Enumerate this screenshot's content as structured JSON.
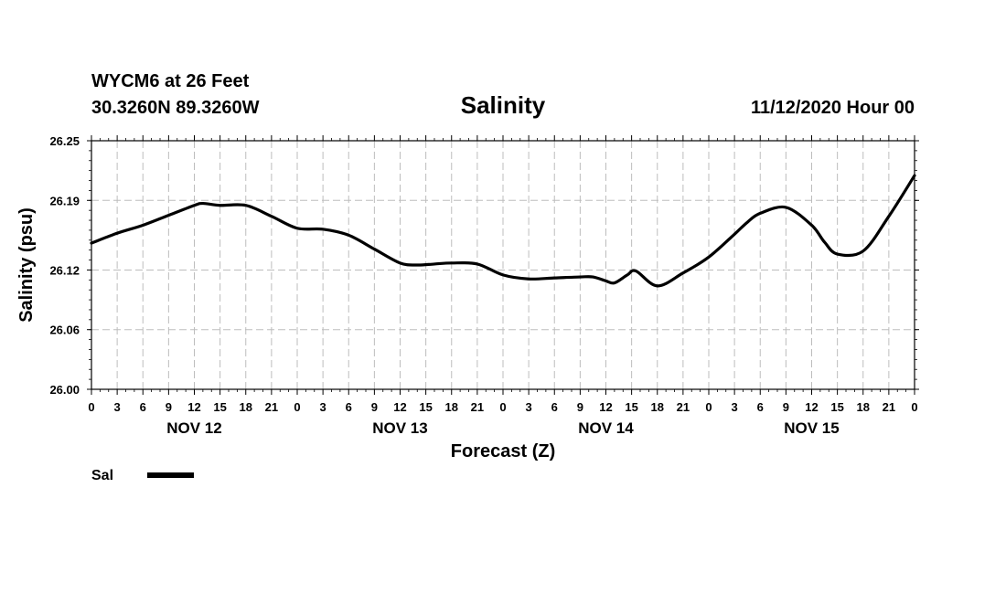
{
  "chart_data": {
    "type": "line",
    "title": "Salinity",
    "station_line1": "WYCM6 at 26 Feet",
    "station_line2": "30.3260N 89.3260W",
    "run_time": "11/12/2020 Hour 00",
    "xlabel": "Forecast (Z)",
    "ylabel": "Salinity (psu)",
    "ylim": [
      26.0,
      26.25
    ],
    "yticks": [
      26.0,
      26.06,
      26.12,
      26.19,
      26.25
    ],
    "ytick_labels": [
      "26.00",
      "26.06",
      "26.12",
      "26.19",
      "26.25"
    ],
    "xlim_hours": [
      0,
      96
    ],
    "xtick_labels": [
      "0",
      "3",
      "6",
      "9",
      "12",
      "15",
      "18",
      "21",
      "0",
      "3",
      "6",
      "9",
      "12",
      "15",
      "18",
      "21",
      "0",
      "3",
      "6",
      "9",
      "12",
      "15",
      "18",
      "21",
      "0",
      "3",
      "6",
      "9",
      "12",
      "15",
      "18",
      "21",
      "0"
    ],
    "day_labels": [
      {
        "label": "NOV 12",
        "hour": 12
      },
      {
        "label": "NOV 13",
        "hour": 36
      },
      {
        "label": "NOV 14",
        "hour": 60
      },
      {
        "label": "NOV 15",
        "hour": 84
      }
    ],
    "grid": true,
    "legend_position": "bottom-left",
    "series": [
      {
        "name": "Sal",
        "x": [
          0,
          3,
          6,
          9,
          12,
          13,
          15,
          18,
          21,
          24,
          27,
          30,
          33,
          36,
          38,
          40,
          42,
          45,
          48,
          51,
          54,
          57,
          58.5,
          60,
          61,
          62.5,
          63.5,
          66,
          69,
          72,
          75,
          76.5,
          78,
          81,
          84,
          85.5,
          87,
          90,
          93,
          96
        ],
        "values": [
          26.147,
          26.157,
          26.165,
          26.175,
          26.185,
          26.187,
          26.185,
          26.185,
          26.174,
          26.162,
          26.161,
          26.155,
          26.141,
          26.127,
          26.125,
          26.126,
          26.127,
          26.126,
          26.115,
          26.111,
          26.112,
          26.113,
          26.113,
          26.109,
          26.107,
          26.115,
          26.119,
          26.104,
          26.117,
          26.133,
          26.156,
          26.168,
          26.177,
          26.183,
          26.165,
          26.148,
          26.136,
          26.139,
          26.174,
          26.215
        ]
      }
    ]
  },
  "legend": {
    "sal_label": "Sal"
  }
}
